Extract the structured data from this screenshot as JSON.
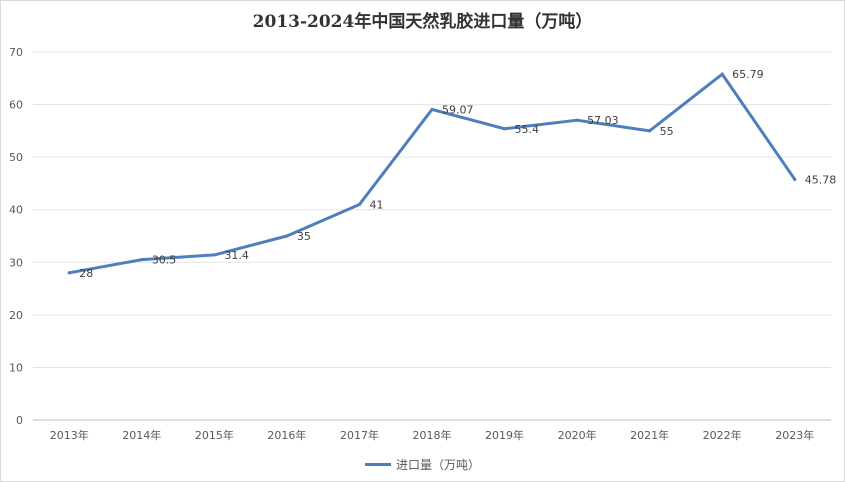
{
  "chart_data": {
    "type": "line",
    "title": "2013-2024年中国天然乳胶进口量（万吨）",
    "xlabel": "",
    "ylabel": "",
    "categories": [
      "2013年",
      "2014年",
      "2015年",
      "2016年",
      "2017年",
      "2018年",
      "2019年",
      "2020年",
      "2021年",
      "2022年",
      "2023年"
    ],
    "series": [
      {
        "name": "进口量（万吨）",
        "values": [
          28,
          30.5,
          31.4,
          35,
          41,
          59.07,
          55.4,
          57.03,
          55,
          65.79,
          45.78
        ],
        "data_labels": [
          "28",
          "30.5",
          "31.4",
          "35",
          "41",
          "59.07",
          "55.4",
          "57.03",
          "55",
          "65.79",
          "45.78"
        ],
        "color": "#4e7fbb"
      }
    ],
    "ylim": [
      0,
      70
    ],
    "yticks": [
      0,
      10,
      20,
      30,
      40,
      50,
      60,
      70
    ],
    "grid": true,
    "legend": "bottom"
  }
}
